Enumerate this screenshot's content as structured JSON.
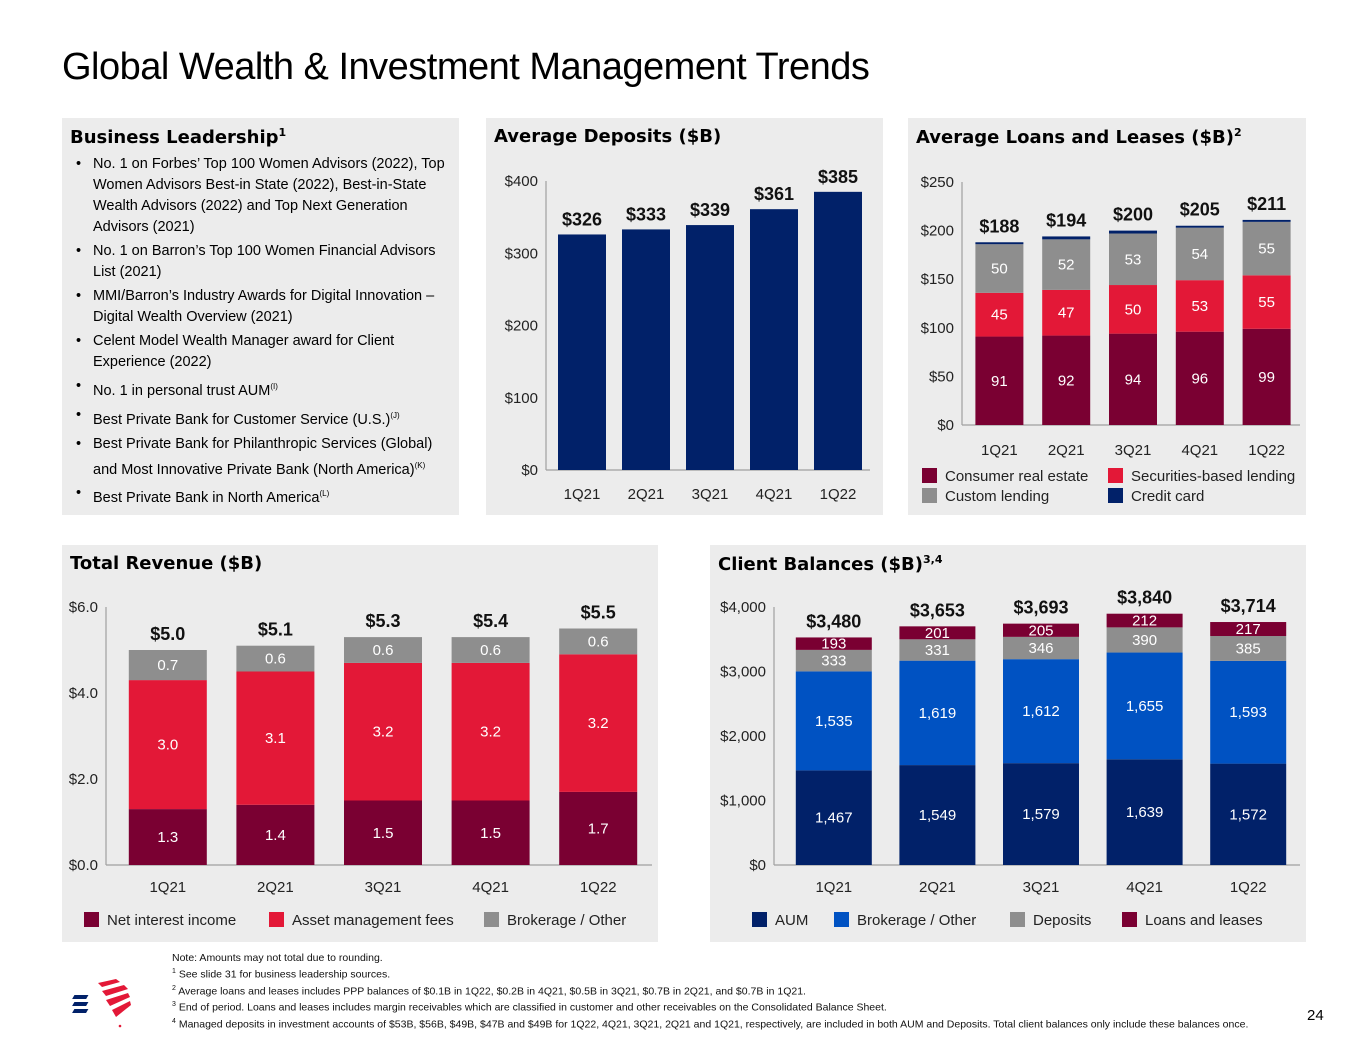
{
  "page": {
    "title": "Global Wealth & Investment Management Trends",
    "page_number": "24"
  },
  "leadership": {
    "title": "Business Leadership",
    "title_sup": "1",
    "items": [
      {
        "text": "No. 1 on Forbes’ Top 100 Women Advisors (2022), Top Women Advisors Best-in State (2022), Best-in-State Wealth Advisors (2022) and Top Next Generation Advisors (2021)",
        "sup": ""
      },
      {
        "text": "No. 1 on Barron’s Top 100 Women Financial Advisors List (2021)",
        "sup": ""
      },
      {
        "text": "MMI/Barron’s Industry Awards for Digital Innovation – Digital Wealth Overview (2021)",
        "sup": ""
      },
      {
        "text": "Celent Model Wealth Manager award for Client Experience (2022)",
        "sup": ""
      },
      {
        "text": "No. 1 in personal trust AUM",
        "sup": "(I)"
      },
      {
        "text": "Best Private Bank for Customer Service (U.S.)",
        "sup": "(J)"
      },
      {
        "text": "Best Private Bank for Philanthropic Services (Global) and Most Innovative Private Bank (North America)",
        "sup": "(K)"
      },
      {
        "text": "Best Private Bank in North America",
        "sup": "(L)"
      }
    ]
  },
  "colors": {
    "navy": "#012169",
    "dark_red": "#7a0032",
    "red": "#e31837",
    "gray": "#8e8e8e",
    "blue": "#0052c2",
    "panel_bg": "#ececec"
  },
  "chart_data": [
    {
      "id": "deposits",
      "type": "bar",
      "title": "Average Deposits ($B)",
      "title_sup": "",
      "categories": [
        "1Q21",
        "2Q21",
        "3Q21",
        "4Q21",
        "1Q22"
      ],
      "values": [
        326,
        333,
        339,
        361,
        385
      ],
      "data_labels": [
        "$326",
        "$333",
        "$339",
        "$361",
        "$385"
      ],
      "ylim": [
        0,
        400
      ],
      "yticks": [
        0,
        100,
        200,
        300,
        400
      ],
      "ytick_labels": [
        "$0",
        "$100",
        "$200",
        "$300",
        "$400"
      ],
      "color": "#012169",
      "grid": false
    },
    {
      "id": "loans",
      "type": "bar",
      "stacked": true,
      "title": "Average Loans and Leases ($B)",
      "title_sup": "2",
      "categories": [
        "1Q21",
        "2Q21",
        "3Q21",
        "4Q21",
        "1Q22"
      ],
      "series": [
        {
          "name": "Consumer real estate",
          "color": "#7a0032",
          "values": [
            91,
            92,
            94,
            96,
            99
          ],
          "labels": [
            "91",
            "92",
            "94",
            "96",
            "99"
          ]
        },
        {
          "name": "Securities-based lending",
          "color": "#e31837",
          "values": [
            45,
            47,
            50,
            53,
            55
          ],
          "labels": [
            "45",
            "47",
            "50",
            "53",
            "55"
          ]
        },
        {
          "name": "Custom lending",
          "color": "#8e8e8e",
          "values": [
            50,
            52,
            53,
            54,
            55
          ],
          "labels": [
            "50",
            "52",
            "53",
            "54",
            "55"
          ]
        },
        {
          "name": "Credit card",
          "color": "#012169",
          "values": [
            2,
            3,
            3,
            2,
            2
          ],
          "labels": [
            "",
            "",
            "",
            "",
            ""
          ]
        }
      ],
      "totals": [
        "$188",
        "$194",
        "$200",
        "$205",
        "$211"
      ],
      "ylim": [
        0,
        250
      ],
      "yticks": [
        0,
        50,
        100,
        150,
        200,
        250
      ],
      "ytick_labels": [
        "$0",
        "$50",
        "$100",
        "$150",
        "$200",
        "$250"
      ],
      "legend_order": [
        "Consumer real estate",
        "Securities-based lending",
        "Custom lending",
        "Credit card"
      ],
      "legend": "bottom",
      "grid": false
    },
    {
      "id": "revenue",
      "type": "bar",
      "stacked": true,
      "title": "Total Revenue ($B)",
      "title_sup": "",
      "categories": [
        "1Q21",
        "2Q21",
        "3Q21",
        "4Q21",
        "1Q22"
      ],
      "series": [
        {
          "name": "Net interest income",
          "color": "#7a0032",
          "values": [
            1.3,
            1.4,
            1.5,
            1.5,
            1.7
          ],
          "labels": [
            "1.3",
            "1.4",
            "1.5",
            "1.5",
            "1.7"
          ]
        },
        {
          "name": "Asset management fees",
          "color": "#e31837",
          "values": [
            3.0,
            3.1,
            3.2,
            3.2,
            3.2
          ],
          "labels": [
            "3.0",
            "3.1",
            "3.2",
            "3.2",
            "3.2"
          ]
        },
        {
          "name": "Brokerage / Other",
          "color": "#8e8e8e",
          "values": [
            0.7,
            0.6,
            0.6,
            0.6,
            0.6
          ],
          "labels": [
            "0.7",
            "0.6",
            "0.6",
            "0.6",
            "0.6"
          ]
        }
      ],
      "totals": [
        "$5.0",
        "$5.1",
        "$5.3",
        "$5.4",
        "$5.5"
      ],
      "ylim": [
        0,
        6
      ],
      "yticks": [
        0,
        2,
        4,
        6
      ],
      "ytick_labels": [
        "$0.0",
        "$2.0",
        "$4.0",
        "$6.0"
      ],
      "legend_order": [
        "Net interest income",
        "Asset management fees",
        "Brokerage / Other"
      ],
      "legend": "bottom",
      "grid": false
    },
    {
      "id": "client",
      "type": "bar",
      "stacked": true,
      "title": "Client Balances ($B)",
      "title_sup": "3,4",
      "categories": [
        "1Q21",
        "2Q21",
        "3Q21",
        "4Q21",
        "1Q22"
      ],
      "series": [
        {
          "name": "AUM",
          "color": "#012169",
          "values": [
            1467,
            1549,
            1579,
            1639,
            1572
          ],
          "labels": [
            "1,467",
            "1,549",
            "1,579",
            "1,639",
            "1,572"
          ]
        },
        {
          "name": "Brokerage / Other",
          "color": "#0052c2",
          "values": [
            1535,
            1619,
            1612,
            1655,
            1593
          ],
          "labels": [
            "1,535",
            "1,619",
            "1,612",
            "1,655",
            "1,593"
          ]
        },
        {
          "name": "Deposits",
          "color": "#8e8e8e",
          "values": [
            333,
            331,
            346,
            390,
            385
          ],
          "labels": [
            "333",
            "331",
            "346",
            "390",
            "385"
          ]
        },
        {
          "name": "Loans and leases",
          "color": "#7a0032",
          "values": [
            193,
            201,
            205,
            212,
            217
          ],
          "labels": [
            "193",
            "201",
            "205",
            "212",
            "217"
          ]
        }
      ],
      "totals": [
        "$3,480",
        "$3,653",
        "$3,693",
        "$3,840",
        "$3,714"
      ],
      "ylim": [
        0,
        4000
      ],
      "yticks": [
        0,
        1000,
        2000,
        3000,
        4000
      ],
      "ytick_labels": [
        "$0",
        "$1,000",
        "$2,000",
        "$3,000",
        "$4,000"
      ],
      "legend_order": [
        "AUM",
        "Brokerage / Other",
        "Deposits",
        "Loans and leases"
      ],
      "legend": "bottom",
      "grid": false
    }
  ],
  "footnotes": [
    {
      "sup": "",
      "text": "Note: Amounts may not total due to rounding."
    },
    {
      "sup": "1",
      "text": " See slide 31 for business leadership sources."
    },
    {
      "sup": "2",
      "text": " Average loans and leases includes PPP balances of $0.1B in 1Q22, $0.2B in 4Q21, $0.5B in 3Q21, $0.7B in 2Q21, and $0.7B in 1Q21."
    },
    {
      "sup": "3",
      "text": " End of period. Loans and leases includes margin receivables which are classified in customer and other receivables on the Consolidated Balance Sheet."
    },
    {
      "sup": "4",
      "text": " Managed deposits in investment accounts of $53B, $56B, $49B, $47B and $49B for 1Q22, 4Q21, 3Q21, 2Q21 and 1Q21, respectively, are included in both AUM and Deposits. Total client balances only include these balances once."
    }
  ],
  "logo": {
    "name": "bank-flag-logo"
  }
}
